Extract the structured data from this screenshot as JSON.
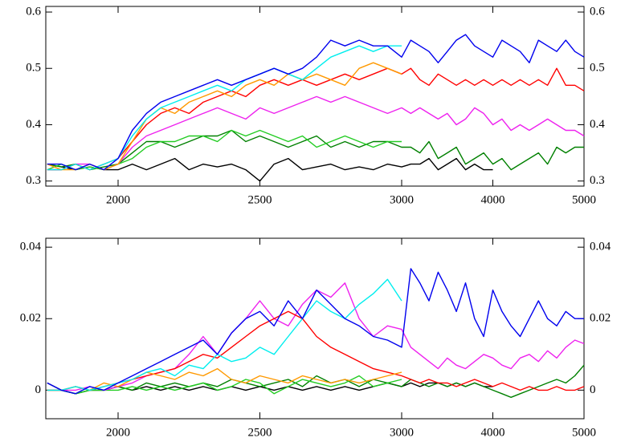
{
  "chart_data": [
    {
      "type": "line",
      "x": [
        1750,
        1800,
        1850,
        1900,
        1950,
        2000,
        2050,
        2100,
        2150,
        2200,
        2250,
        2300,
        2350,
        2400,
        2450,
        2500,
        2550,
        2600,
        2650,
        2700,
        2750,
        2800,
        2850,
        2900,
        2950,
        3000,
        3100,
        3200,
        3300,
        3400,
        3500,
        3600,
        3700,
        3800,
        3900,
        4000,
        4100,
        4200,
        4300,
        4400,
        4500,
        4600,
        4700,
        4800,
        4900,
        5000
      ],
      "xlim_segments": [
        [
          1745,
          3000
        ],
        [
          3000,
          5000
        ]
      ],
      "xticks": [
        2000,
        2500,
        3000,
        4000,
        5000
      ],
      "ylim": [
        0.291,
        0.61
      ],
      "yticks": [
        0.3,
        0.4,
        0.5,
        0.6
      ],
      "series": [
        {
          "color": "#000000",
          "values": [
            0.33,
            0.325,
            0.32,
            0.325,
            0.32,
            0.32,
            0.33,
            0.32,
            0.33,
            0.34,
            0.32,
            0.33,
            0.325,
            0.33,
            0.32,
            0.3,
            0.33,
            0.34,
            0.32,
            0.325,
            0.33,
            0.32,
            0.325,
            0.32,
            0.33,
            0.325,
            0.33,
            0.33,
            0.34,
            0.32,
            0.33,
            0.34,
            0.32,
            0.33,
            0.32,
            0.32,
            null,
            null,
            null,
            null,
            null,
            null,
            null,
            null,
            null,
            null
          ]
        },
        {
          "color": "#008000",
          "values": [
            0.33,
            0.325,
            0.33,
            0.32,
            0.325,
            0.33,
            0.35,
            0.37,
            0.37,
            0.36,
            0.37,
            0.38,
            0.38,
            0.39,
            0.37,
            0.38,
            0.37,
            0.36,
            0.37,
            0.38,
            0.36,
            0.37,
            0.36,
            0.37,
            0.37,
            0.36,
            0.36,
            0.35,
            0.37,
            0.34,
            0.35,
            0.36,
            0.33,
            0.34,
            0.35,
            0.33,
            0.34,
            0.32,
            0.33,
            0.34,
            0.35,
            0.33,
            0.36,
            0.35,
            0.36,
            0.36
          ]
        },
        {
          "color": "#22cc22",
          "values": [
            0.32,
            0.33,
            0.32,
            0.325,
            0.32,
            0.33,
            0.34,
            0.36,
            0.37,
            0.37,
            0.38,
            0.38,
            0.37,
            0.39,
            0.38,
            0.39,
            0.38,
            0.37,
            0.38,
            0.36,
            0.37,
            0.38,
            0.37,
            0.36,
            0.37,
            0.37,
            null,
            null,
            null,
            null,
            null,
            null,
            null,
            null,
            null,
            null,
            null,
            null,
            null,
            null,
            null,
            null,
            null,
            null,
            null,
            null
          ]
        },
        {
          "color": "#ee22ee",
          "values": [
            0.32,
            0.32,
            0.33,
            0.33,
            0.32,
            0.33,
            0.36,
            0.38,
            0.39,
            0.4,
            0.41,
            0.42,
            0.43,
            0.42,
            0.41,
            0.43,
            0.42,
            0.43,
            0.44,
            0.45,
            0.44,
            0.45,
            0.44,
            0.43,
            0.42,
            0.43,
            0.42,
            0.43,
            0.42,
            0.41,
            0.42,
            0.4,
            0.41,
            0.43,
            0.42,
            0.4,
            0.41,
            0.39,
            0.4,
            0.39,
            0.4,
            0.41,
            0.4,
            0.39,
            0.39,
            0.38
          ]
        },
        {
          "color": "#ff0000",
          "values": [
            0.32,
            0.32,
            0.33,
            0.32,
            0.33,
            0.34,
            0.37,
            0.4,
            0.42,
            0.43,
            0.42,
            0.44,
            0.45,
            0.46,
            0.45,
            0.47,
            0.48,
            0.47,
            0.48,
            0.47,
            0.48,
            0.49,
            0.48,
            0.49,
            0.5,
            0.49,
            0.5,
            0.48,
            0.47,
            0.49,
            0.48,
            0.47,
            0.48,
            0.47,
            0.48,
            0.47,
            0.48,
            0.47,
            0.48,
            0.47,
            0.48,
            0.47,
            0.5,
            0.47,
            0.47,
            0.46
          ]
        },
        {
          "color": "#ff9900",
          "values": [
            0.33,
            0.32,
            0.32,
            0.33,
            0.32,
            0.33,
            0.37,
            0.41,
            0.43,
            0.42,
            0.44,
            0.45,
            0.46,
            0.45,
            0.47,
            0.48,
            0.47,
            0.49,
            0.48,
            0.49,
            0.48,
            0.47,
            0.5,
            0.51,
            0.5,
            0.49,
            null,
            null,
            null,
            null,
            null,
            null,
            null,
            null,
            null,
            null,
            null,
            null,
            null,
            null,
            null,
            null,
            null,
            null,
            null,
            null
          ]
        },
        {
          "color": "#00eeee",
          "values": [
            0.32,
            0.32,
            0.33,
            0.32,
            0.33,
            0.34,
            0.38,
            0.41,
            0.43,
            0.44,
            0.45,
            0.46,
            0.47,
            0.46,
            0.48,
            0.49,
            0.5,
            0.49,
            0.48,
            0.5,
            0.52,
            0.53,
            0.54,
            0.53,
            0.54,
            0.54,
            null,
            null,
            null,
            null,
            null,
            null,
            null,
            null,
            null,
            null,
            null,
            null,
            null,
            null,
            null,
            null,
            null,
            null,
            null,
            null
          ]
        },
        {
          "color": "#0000ee",
          "values": [
            0.33,
            0.33,
            0.32,
            0.33,
            0.32,
            0.34,
            0.39,
            0.42,
            0.44,
            0.45,
            0.46,
            0.47,
            0.48,
            0.47,
            0.48,
            0.49,
            0.5,
            0.49,
            0.5,
            0.52,
            0.55,
            0.54,
            0.55,
            0.54,
            0.54,
            0.52,
            0.55,
            0.54,
            0.53,
            0.51,
            0.53,
            0.55,
            0.56,
            0.54,
            0.53,
            0.52,
            0.55,
            0.54,
            0.53,
            0.51,
            0.55,
            0.54,
            0.53,
            0.55,
            0.53,
            0.52
          ]
        }
      ]
    },
    {
      "type": "line",
      "x": [
        1750,
        1800,
        1850,
        1900,
        1950,
        2000,
        2050,
        2100,
        2150,
        2200,
        2250,
        2300,
        2350,
        2400,
        2450,
        2500,
        2550,
        2600,
        2650,
        2700,
        2750,
        2800,
        2850,
        2900,
        2950,
        3000,
        3100,
        3200,
        3300,
        3400,
        3500,
        3600,
        3700,
        3800,
        3900,
        4000,
        4100,
        4200,
        4300,
        4400,
        4500,
        4600,
        4700,
        4800,
        4900,
        5000
      ],
      "xlim_segments": [
        [
          1745,
          3000
        ],
        [
          3000,
          5000
        ]
      ],
      "xticks": [
        2000,
        2500,
        3000,
        4000,
        5000
      ],
      "ylim": [
        -0.008,
        0.0425
      ],
      "yticks": [
        0,
        0.02,
        0.04
      ],
      "series": [
        {
          "color": "#000000",
          "values": [
            0.002,
            0,
            -0.001,
            0,
            0,
            0.001,
            0,
            0.001,
            0,
            0.001,
            0,
            0.001,
            0,
            0.001,
            0,
            0.001,
            0,
            0.001,
            0,
            0.001,
            0,
            0.001,
            0,
            0.001,
            0.002,
            0.001,
            0.002,
            0.001,
            0.002,
            0.002,
            0.001,
            0.002,
            0.001,
            0.002,
            0.001,
            0.001,
            null,
            null,
            null,
            null,
            null,
            null,
            null,
            null,
            null,
            null
          ]
        },
        {
          "color": "#008000",
          "values": [
            0,
            0,
            -0.001,
            0,
            0,
            0.001,
            0,
            0.002,
            0.001,
            0.002,
            0.001,
            0.002,
            0.001,
            0.003,
            0.002,
            0.001,
            0.002,
            0.003,
            0.001,
            0.004,
            0.002,
            0.003,
            0.001,
            0.003,
            0.002,
            0.001,
            0.003,
            0.002,
            0.001,
            0.002,
            0.001,
            0.002,
            0.001,
            0.002,
            0.001,
            0,
            -0.001,
            -0.002,
            -0.001,
            0,
            0.001,
            0.002,
            0.003,
            0.002,
            0.004,
            0.007
          ]
        },
        {
          "color": "#22cc22",
          "values": [
            0,
            0,
            -0.001,
            0,
            0,
            0,
            0.001,
            0,
            0.001,
            0,
            0.001,
            0.002,
            0,
            0.001,
            0.003,
            0.002,
            -0.001,
            0.001,
            0.003,
            0.002,
            0.001,
            0.002,
            0.004,
            0.001,
            0.002,
            0.003,
            null,
            null,
            null,
            null,
            null,
            null,
            null,
            null,
            null,
            null,
            null,
            null,
            null,
            null,
            null,
            null,
            null,
            null,
            null,
            null
          ]
        },
        {
          "color": "#ee22ee",
          "values": [
            0,
            0,
            0,
            0.001,
            0,
            0.001,
            0.002,
            0.004,
            0.005,
            0.006,
            0.01,
            0.015,
            0.01,
            0.016,
            0.02,
            0.025,
            0.02,
            0.018,
            0.024,
            0.028,
            0.026,
            0.03,
            0.02,
            0.015,
            0.018,
            0.017,
            0.012,
            0.01,
            0.008,
            0.006,
            0.009,
            0.007,
            0.006,
            0.008,
            0.01,
            0.009,
            0.007,
            0.006,
            0.009,
            0.01,
            0.008,
            0.011,
            0.009,
            0.012,
            0.014,
            0.013
          ]
        },
        {
          "color": "#ff0000",
          "values": [
            0,
            0,
            0.001,
            0,
            0.001,
            0.002,
            0.003,
            0.004,
            0.005,
            0.006,
            0.008,
            0.01,
            0.009,
            0.012,
            0.015,
            0.018,
            0.02,
            0.022,
            0.02,
            0.015,
            0.012,
            0.01,
            0.008,
            0.006,
            0.005,
            0.004,
            0.003,
            0.002,
            0.003,
            0.002,
            0.002,
            0.001,
            0.002,
            0.003,
            0.002,
            0.001,
            0.002,
            0.001,
            0,
            0.001,
            0,
            0,
            0.001,
            0,
            0,
            0.001
          ]
        },
        {
          "color": "#ff9900",
          "values": [
            0,
            0,
            0.001,
            0,
            0.002,
            0.001,
            0.003,
            0.005,
            0.004,
            0.003,
            0.005,
            0.004,
            0.006,
            0.003,
            0.002,
            0.004,
            0.003,
            0.002,
            0.004,
            0.003,
            0.002,
            0.003,
            0.002,
            0.003,
            0.004,
            0.005,
            null,
            null,
            null,
            null,
            null,
            null,
            null,
            null,
            null,
            null,
            null,
            null,
            null,
            null,
            null,
            null,
            null,
            null,
            null,
            null
          ]
        },
        {
          "color": "#00eeee",
          "values": [
            0,
            0,
            0.001,
            0,
            0.001,
            0.002,
            0.003,
            0.005,
            0.006,
            0.004,
            0.007,
            0.006,
            0.01,
            0.008,
            0.009,
            0.012,
            0.01,
            0.015,
            0.02,
            0.025,
            0.022,
            0.02,
            0.024,
            0.027,
            0.031,
            0.025,
            null,
            null,
            null,
            null,
            null,
            null,
            null,
            null,
            null,
            null,
            null,
            null,
            null,
            null,
            null,
            null,
            null,
            null,
            null,
            null
          ]
        },
        {
          "color": "#0000ee",
          "values": [
            0.002,
            0,
            -0.001,
            0.001,
            0,
            0.002,
            0.004,
            0.006,
            0.008,
            0.01,
            0.012,
            0.014,
            0.01,
            0.016,
            0.02,
            0.022,
            0.018,
            0.025,
            0.02,
            0.028,
            0.024,
            0.02,
            0.018,
            0.015,
            0.014,
            0.012,
            0.034,
            0.03,
            0.025,
            0.033,
            0.028,
            0.022,
            0.03,
            0.02,
            0.015,
            0.028,
            0.022,
            0.018,
            0.015,
            0.02,
            0.025,
            0.02,
            0.018,
            0.022,
            0.02,
            0.02
          ]
        }
      ]
    }
  ]
}
